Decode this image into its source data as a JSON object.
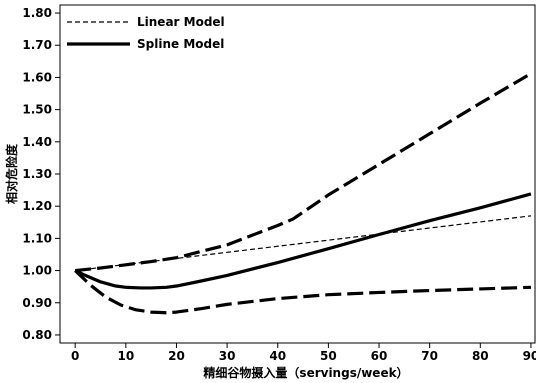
{
  "chart_data": {
    "type": "line",
    "xlabel": "精细谷物摄入量（servings/week）",
    "ylabel": "相对危险度",
    "xlim": [
      -3,
      91
    ],
    "ylim": [
      0.775,
      1.825
    ],
    "xticks": [
      0,
      10,
      20,
      30,
      40,
      50,
      60,
      70,
      80,
      90
    ],
    "xtick_labels": [
      "0",
      "10",
      "20",
      "30",
      "40",
      "50",
      "60",
      "70",
      "80",
      "90"
    ],
    "yticks": [
      0.8,
      0.9,
      1.0,
      1.1,
      1.2,
      1.3,
      1.4,
      1.5,
      1.6,
      1.7,
      1.8
    ],
    "ytick_labels": [
      "0.80",
      "0.90",
      "1.00",
      "1.10",
      "1.20",
      "1.30",
      "1.40",
      "1.50",
      "1.60",
      "1.70",
      "1.80"
    ],
    "grid": false,
    "legend_position": "top-left",
    "legend": [
      {
        "label": "Linear Model",
        "style": "dashed-thin"
      },
      {
        "label": "Spline Model",
        "style": "solid-thick"
      }
    ],
    "series": [
      {
        "name": "Linear Model",
        "style": "dashed-thin",
        "x": [
          0,
          90
        ],
        "y": [
          1.0,
          1.17
        ]
      },
      {
        "name": "Spline Model",
        "style": "solid-thick",
        "x": [
          0,
          2,
          5,
          8,
          10,
          13,
          15,
          18,
          20,
          25,
          30,
          40,
          50,
          60,
          70,
          80,
          90
        ],
        "y": [
          1.0,
          0.985,
          0.965,
          0.952,
          0.948,
          0.946,
          0.946,
          0.948,
          0.952,
          0.968,
          0.985,
          1.025,
          1.068,
          1.112,
          1.155,
          1.195,
          1.238
        ]
      },
      {
        "style": "dashed-thick",
        "x": [
          0,
          5,
          10,
          15,
          20,
          25,
          30,
          35,
          40,
          43,
          50,
          60,
          70,
          80,
          90
        ],
        "y": [
          1.0,
          1.008,
          1.018,
          1.028,
          1.04,
          1.06,
          1.08,
          1.11,
          1.14,
          1.16,
          1.235,
          1.33,
          1.425,
          1.52,
          1.612
        ]
      },
      {
        "style": "dashed-thick",
        "x": [
          0,
          3,
          6,
          9,
          12,
          15,
          18,
          20,
          25,
          30,
          40,
          50,
          60,
          70,
          80,
          90
        ],
        "y": [
          1.0,
          0.955,
          0.918,
          0.893,
          0.878,
          0.871,
          0.869,
          0.871,
          0.882,
          0.895,
          0.913,
          0.925,
          0.932,
          0.938,
          0.943,
          0.948
        ]
      }
    ]
  }
}
